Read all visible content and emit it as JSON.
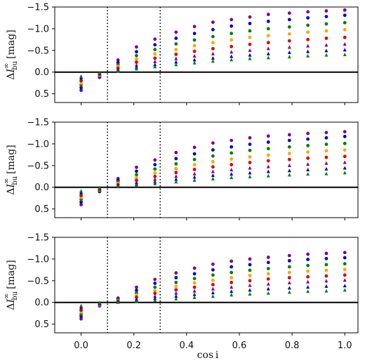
{
  "chart_data": {
    "type": "scatter",
    "xlabel": "cos i",
    "ylabel": "ΔI∞_bu [mag]",
    "ylabel_parts": {
      "prefix": "Δ",
      "var": "I",
      "sup": "∞",
      "sub": "bu",
      "unit": "[mag]"
    },
    "xlim": [
      -0.1,
      1.05
    ],
    "ylim": [
      0.7,
      -1.5
    ],
    "y_inverted": true,
    "xticks": [
      0.0,
      0.2,
      0.4,
      0.6,
      0.8,
      1.0
    ],
    "xtick_labels": [
      "0.0",
      "0.2",
      "0.4",
      "0.6",
      "0.8",
      "1.0"
    ],
    "yticks": [
      -1.5,
      -1.0,
      -0.5,
      0.0,
      0.5
    ],
    "ytick_labels": [
      "−1.5",
      "−1.0",
      "−0.5",
      "0.0",
      "0.5"
    ],
    "zero_line": 0.0,
    "vlines": [
      0.1,
      0.3
    ],
    "grid": false,
    "legend": "none",
    "series_colors": [
      "#800080",
      "#0000cc",
      "#008000",
      "#ffa500",
      "#dd0000",
      "#800080",
      "#0000cc",
      "#008000"
    ],
    "series_markers": [
      "circle",
      "circle",
      "circle",
      "circle",
      "circle",
      "triangle",
      "triangle",
      "triangle"
    ],
    "x": [
      0.0,
      0.07,
      0.14,
      0.21,
      0.28,
      0.36,
      0.43,
      0.5,
      0.57,
      0.64,
      0.71,
      0.79,
      0.86,
      0.93,
      1.0
    ],
    "panels": [
      {
        "series": [
          {
            "values": [
              0.42,
              0.12,
              -0.28,
              -0.58,
              -0.76,
              -0.92,
              -1.05,
              -1.15,
              -1.21,
              -1.27,
              -1.33,
              -1.36,
              -1.39,
              -1.41,
              -1.43
            ]
          },
          {
            "values": [
              0.36,
              0.1,
              -0.22,
              -0.47,
              -0.63,
              -0.78,
              -0.89,
              -0.98,
              -1.06,
              -1.12,
              -1.17,
              -1.21,
              -1.25,
              -1.28,
              -1.31
            ]
          },
          {
            "values": [
              0.3,
              0.08,
              -0.17,
              -0.38,
              -0.52,
              -0.65,
              -0.74,
              -0.82,
              -0.89,
              -0.95,
              -1.0,
              -1.04,
              -1.08,
              -1.11,
              -1.14
            ]
          },
          {
            "values": [
              0.25,
              0.07,
              -0.13,
              -0.3,
              -0.42,
              -0.52,
              -0.61,
              -0.68,
              -0.74,
              -0.8,
              -0.84,
              -0.88,
              -0.92,
              -0.95,
              -0.98
            ]
          },
          {
            "values": [
              0.2,
              0.05,
              -0.09,
              -0.23,
              -0.32,
              -0.41,
              -0.48,
              -0.54,
              -0.59,
              -0.64,
              -0.68,
              -0.72,
              -0.75,
              -0.78,
              -0.8
            ]
          },
          {
            "values": [
              0.16,
              0.04,
              -0.06,
              -0.16,
              -0.24,
              -0.31,
              -0.37,
              -0.42,
              -0.46,
              -0.5,
              -0.54,
              -0.57,
              -0.6,
              -0.62,
              -0.64
            ]
          },
          {
            "values": [
              0.13,
              0.03,
              -0.04,
              -0.11,
              -0.17,
              -0.23,
              -0.28,
              -0.32,
              -0.36,
              -0.39,
              -0.42,
              -0.45,
              -0.47,
              -0.49,
              -0.51
            ]
          },
          {
            "values": [
              0.1,
              0.02,
              -0.02,
              -0.07,
              -0.12,
              -0.17,
              -0.21,
              -0.25,
              -0.28,
              -0.31,
              -0.33,
              -0.35,
              -0.37,
              -0.39,
              -0.4
            ]
          }
        ]
      },
      {
        "series": [
          {
            "values": [
              0.4,
              0.1,
              -0.2,
              -0.46,
              -0.63,
              -0.8,
              -0.92,
              -1.02,
              -1.08,
              -1.14,
              -1.18,
              -1.21,
              -1.24,
              -1.26,
              -1.28
            ]
          },
          {
            "values": [
              0.34,
              0.09,
              -0.16,
              -0.37,
              -0.52,
              -0.66,
              -0.77,
              -0.86,
              -0.93,
              -0.99,
              -1.04,
              -1.08,
              -1.11,
              -1.14,
              -1.17
            ]
          },
          {
            "values": [
              0.28,
              0.07,
              -0.12,
              -0.29,
              -0.42,
              -0.54,
              -0.64,
              -0.72,
              -0.79,
              -0.85,
              -0.89,
              -0.93,
              -0.96,
              -0.99,
              -1.01
            ]
          },
          {
            "values": [
              0.23,
              0.06,
              -0.09,
              -0.22,
              -0.33,
              -0.43,
              -0.52,
              -0.59,
              -0.65,
              -0.7,
              -0.74,
              -0.78,
              -0.81,
              -0.84,
              -0.86
            ]
          },
          {
            "values": [
              0.19,
              0.05,
              -0.06,
              -0.16,
              -0.25,
              -0.34,
              -0.41,
              -0.47,
              -0.52,
              -0.57,
              -0.61,
              -0.64,
              -0.67,
              -0.69,
              -0.71
            ]
          },
          {
            "values": [
              0.15,
              0.04,
              -0.04,
              -0.11,
              -0.18,
              -0.25,
              -0.31,
              -0.36,
              -0.4,
              -0.44,
              -0.47,
              -0.5,
              -0.53,
              -0.55,
              -0.57
            ]
          },
          {
            "values": [
              0.12,
              0.03,
              -0.02,
              -0.07,
              -0.12,
              -0.18,
              -0.23,
              -0.27,
              -0.3,
              -0.33,
              -0.36,
              -0.38,
              -0.4,
              -0.42,
              -0.44
            ]
          },
          {
            "values": [
              0.09,
              0.02,
              -0.01,
              -0.04,
              -0.08,
              -0.12,
              -0.16,
              -0.19,
              -0.22,
              -0.24,
              -0.26,
              -0.28,
              -0.3,
              -0.31,
              -0.33
            ]
          }
        ]
      },
      {
        "series": [
          {
            "values": [
              0.38,
              0.08,
              -0.1,
              -0.35,
              -0.53,
              -0.68,
              -0.79,
              -0.88,
              -0.95,
              -1.0,
              -1.04,
              -1.08,
              -1.11,
              -1.13,
              -1.15
            ]
          },
          {
            "values": [
              0.32,
              0.07,
              -0.08,
              -0.28,
              -0.44,
              -0.57,
              -0.66,
              -0.75,
              -0.82,
              -0.87,
              -0.92,
              -0.96,
              -0.99,
              -1.01,
              -1.03
            ]
          },
          {
            "values": [
              0.27,
              0.06,
              -0.06,
              -0.22,
              -0.35,
              -0.46,
              -0.55,
              -0.63,
              -0.69,
              -0.74,
              -0.78,
              -0.82,
              -0.85,
              -0.87,
              -0.89
            ]
          },
          {
            "values": [
              0.22,
              0.05,
              -0.04,
              -0.17,
              -0.27,
              -0.37,
              -0.45,
              -0.51,
              -0.57,
              -0.62,
              -0.66,
              -0.69,
              -0.72,
              -0.74,
              -0.76
            ]
          },
          {
            "values": [
              0.18,
              0.04,
              -0.03,
              -0.12,
              -0.21,
              -0.29,
              -0.35,
              -0.41,
              -0.46,
              -0.5,
              -0.54,
              -0.57,
              -0.59,
              -0.61,
              -0.63
            ]
          },
          {
            "values": [
              0.14,
              0.03,
              -0.02,
              -0.08,
              -0.14,
              -0.21,
              -0.26,
              -0.31,
              -0.35,
              -0.39,
              -0.42,
              -0.45,
              -0.47,
              -0.49,
              -0.51
            ]
          },
          {
            "values": [
              0.11,
              0.02,
              -0.01,
              -0.05,
              -0.09,
              -0.14,
              -0.18,
              -0.22,
              -0.25,
              -0.28,
              -0.31,
              -0.33,
              -0.35,
              -0.37,
              -0.38
            ]
          },
          {
            "values": [
              0.08,
              0.01,
              0.0,
              -0.02,
              -0.05,
              -0.08,
              -0.11,
              -0.14,
              -0.17,
              -0.19,
              -0.21,
              -0.23,
              -0.25,
              -0.26,
              -0.28
            ]
          }
        ]
      }
    ]
  }
}
